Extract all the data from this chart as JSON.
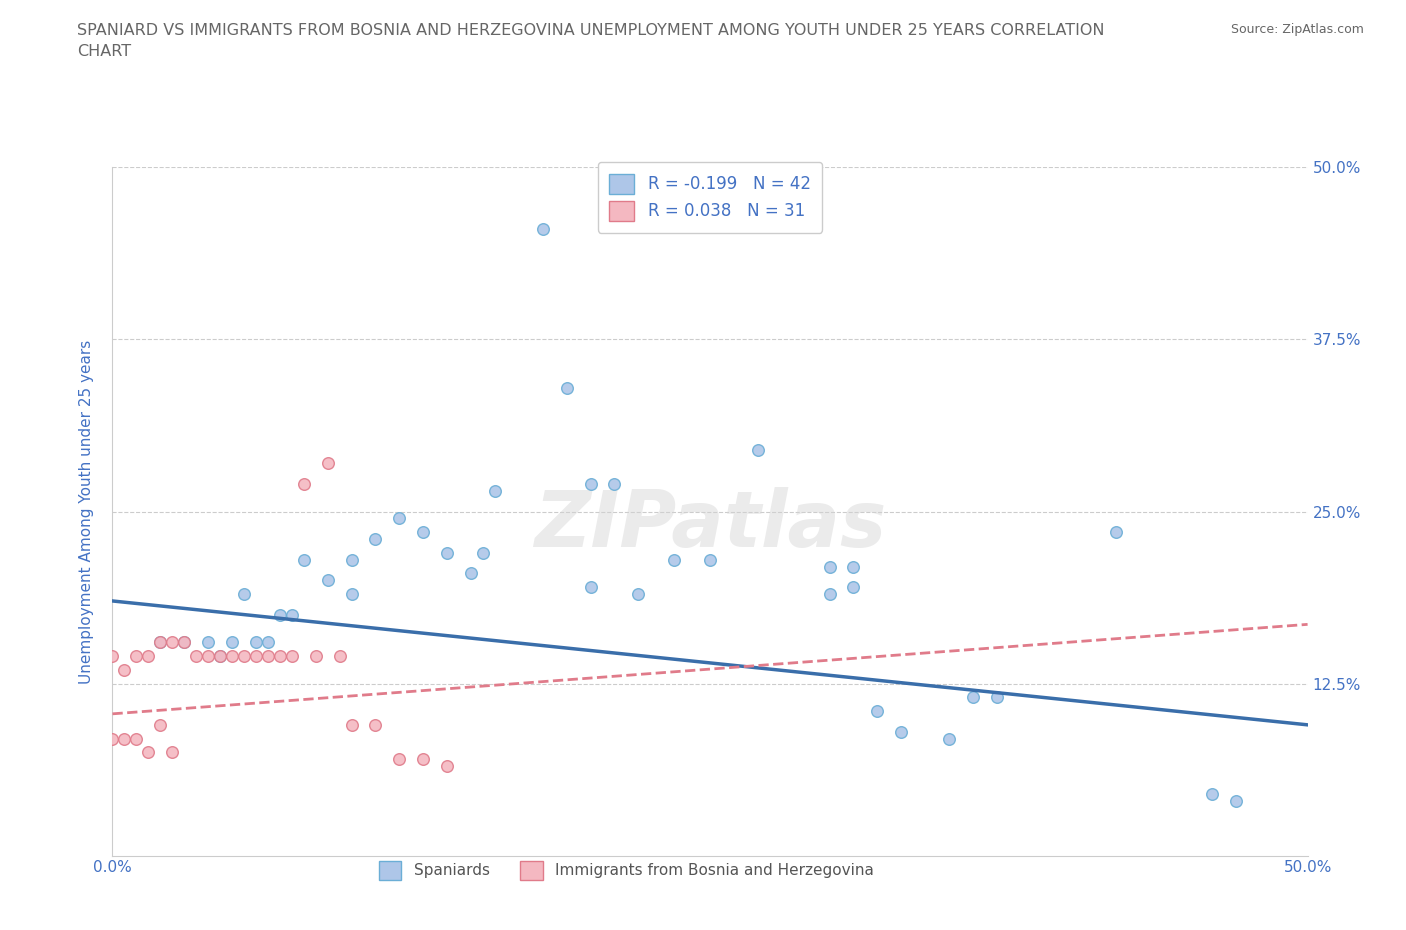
{
  "title": "SPANIARD VS IMMIGRANTS FROM BOSNIA AND HERZEGOVINA UNEMPLOYMENT AMONG YOUTH UNDER 25 YEARS CORRELATION\nCHART",
  "source_text": "Source: ZipAtlas.com",
  "ylabel": "Unemployment Among Youth under 25 years",
  "xlim": [
    0.0,
    0.5
  ],
  "ylim": [
    0.0,
    0.5
  ],
  "xticks": [
    0.0,
    0.125,
    0.25,
    0.375,
    0.5
  ],
  "yticks": [
    0.0,
    0.125,
    0.25,
    0.375,
    0.5
  ],
  "xticklabels": [
    "0.0%",
    "",
    "",
    "",
    "50.0%"
  ],
  "yticklabels": [
    "",
    "12.5%",
    "25.0%",
    "37.5%",
    "50.0%"
  ],
  "grid_color": "#cccccc",
  "background_color": "#ffffff",
  "watermark": "ZIPatlas",
  "legend_R_N": [
    {
      "R": -0.199,
      "N": 42
    },
    {
      "R": 0.038,
      "N": 31
    }
  ],
  "spaniards_x": [
    0.02,
    0.03,
    0.04,
    0.045,
    0.05,
    0.055,
    0.06,
    0.065,
    0.07,
    0.075,
    0.08,
    0.09,
    0.1,
    0.11,
    0.12,
    0.13,
    0.14,
    0.155,
    0.16,
    0.18,
    0.19,
    0.2,
    0.21,
    0.22,
    0.235,
    0.25,
    0.27,
    0.3,
    0.31,
    0.32,
    0.33,
    0.35,
    0.36,
    0.37,
    0.3,
    0.31,
    0.42,
    0.46,
    0.47,
    0.1,
    0.15,
    0.2
  ],
  "spaniards_y": [
    0.155,
    0.155,
    0.155,
    0.145,
    0.155,
    0.19,
    0.155,
    0.155,
    0.175,
    0.175,
    0.215,
    0.2,
    0.215,
    0.23,
    0.245,
    0.235,
    0.22,
    0.22,
    0.265,
    0.455,
    0.34,
    0.27,
    0.27,
    0.19,
    0.215,
    0.215,
    0.295,
    0.21,
    0.21,
    0.105,
    0.09,
    0.085,
    0.115,
    0.115,
    0.19,
    0.195,
    0.235,
    0.045,
    0.04,
    0.19,
    0.205,
    0.195
  ],
  "bosnia_x": [
    0.0,
    0.005,
    0.01,
    0.015,
    0.02,
    0.025,
    0.03,
    0.035,
    0.04,
    0.045,
    0.05,
    0.055,
    0.06,
    0.065,
    0.07,
    0.075,
    0.08,
    0.085,
    0.09,
    0.095,
    0.1,
    0.11,
    0.12,
    0.13,
    0.14,
    0.0,
    0.005,
    0.01,
    0.015,
    0.02,
    0.025
  ],
  "bosnia_y": [
    0.145,
    0.135,
    0.145,
    0.145,
    0.155,
    0.155,
    0.155,
    0.145,
    0.145,
    0.145,
    0.145,
    0.145,
    0.145,
    0.145,
    0.145,
    0.145,
    0.27,
    0.145,
    0.285,
    0.145,
    0.095,
    0.095,
    0.07,
    0.07,
    0.065,
    0.085,
    0.085,
    0.085,
    0.075,
    0.095,
    0.075
  ],
  "blue_color": "#aec6e8",
  "blue_edge": "#6baed6",
  "pink_color": "#f4b8c1",
  "pink_edge": "#e07b8a",
  "blue_line_color": "#3a6eaa",
  "pink_line_color": "#e07b8a",
  "marker_size": 70,
  "title_color": "#666666",
  "axis_label_color": "#4472c4",
  "tick_color": "#4472c4",
  "blue_line_start_y": 0.185,
  "blue_line_end_y": 0.095,
  "pink_line_start_y": 0.103,
  "pink_line_end_y": 0.168
}
